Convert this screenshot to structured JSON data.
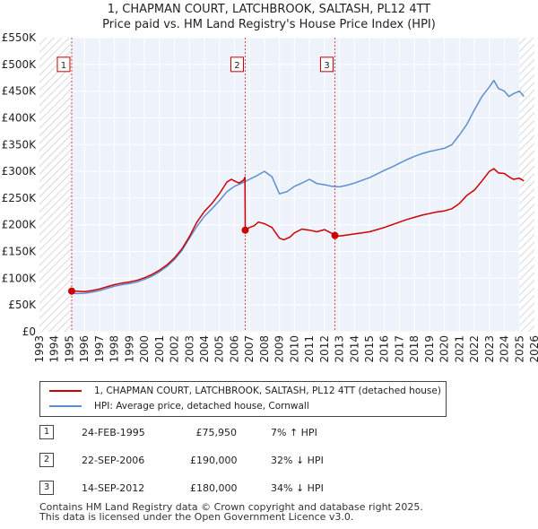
{
  "title_line1": "1, CHAPMAN COURT, LATCHBROOK, SALTASH, PL12 4TT",
  "title_line2": "Price paid vs. HM Land Registry's House Price Index (HPI)",
  "chart_data": {
    "type": "line",
    "title": "1, CHAPMAN COURT, LATCHBROOK, SALTASH, PL12 4TT — Price paid vs. HM Land Registry's House Price Index (HPI)",
    "xlim": [
      1993,
      2026
    ],
    "ylim": [
      0,
      550000
    ],
    "grid": true,
    "x_ticks": [
      1993,
      1994,
      1995,
      1996,
      1997,
      1998,
      1999,
      2000,
      2001,
      2002,
      2003,
      2004,
      2005,
      2006,
      2007,
      2008,
      2009,
      2010,
      2011,
      2012,
      2013,
      2014,
      2015,
      2016,
      2017,
      2018,
      2019,
      2020,
      2021,
      2022,
      2023,
      2024,
      2025,
      2026
    ],
    "y_ticks": [
      {
        "value": 0,
        "label": "£0"
      },
      {
        "value": 50000,
        "label": "£50K"
      },
      {
        "value": 100000,
        "label": "£100K"
      },
      {
        "value": 150000,
        "label": "£150K"
      },
      {
        "value": 200000,
        "label": "£200K"
      },
      {
        "value": 250000,
        "label": "£250K"
      },
      {
        "value": 300000,
        "label": "£300K"
      },
      {
        "value": 350000,
        "label": "£350K"
      },
      {
        "value": 400000,
        "label": "£400K"
      },
      {
        "value": 450000,
        "label": "£450K"
      },
      {
        "value": 500000,
        "label": "£500K"
      },
      {
        "value": 550000,
        "label": "£550K"
      }
    ],
    "shade_before": 1995.15,
    "shade_after": 2025.0,
    "series": [
      {
        "name": "1, CHAPMAN COURT, LATCHBROOK, SALTASH, PL12 4TT (detached house)",
        "color": "#cc0000",
        "points": [
          [
            1995.15,
            75950
          ],
          [
            1995.5,
            75800
          ],
          [
            1996.0,
            75200
          ],
          [
            1996.5,
            77000
          ],
          [
            1997.0,
            80000
          ],
          [
            1997.5,
            84000
          ],
          [
            1998.0,
            88000
          ],
          [
            1998.5,
            91000
          ],
          [
            1999.0,
            93000
          ],
          [
            1999.5,
            96000
          ],
          [
            2000.0,
            101000
          ],
          [
            2000.5,
            107000
          ],
          [
            2001.0,
            115000
          ],
          [
            2001.5,
            125000
          ],
          [
            2002.0,
            138000
          ],
          [
            2002.5,
            155000
          ],
          [
            2003.0,
            178000
          ],
          [
            2003.5,
            205000
          ],
          [
            2004.0,
            225000
          ],
          [
            2004.5,
            240000
          ],
          [
            2005.0,
            258000
          ],
          [
            2005.5,
            280000
          ],
          [
            2005.8,
            285000
          ],
          [
            2006.0,
            282000
          ],
          [
            2006.3,
            278000
          ],
          [
            2006.6,
            283000
          ],
          [
            2006.7,
            289000
          ],
          [
            2006.72,
            190000
          ],
          [
            2007.0,
            195000
          ],
          [
            2007.3,
            198000
          ],
          [
            2007.6,
            205000
          ],
          [
            2008.0,
            202000
          ],
          [
            2008.5,
            195000
          ],
          [
            2009.0,
            175000
          ],
          [
            2009.3,
            172000
          ],
          [
            2009.7,
            177000
          ],
          [
            2010.0,
            185000
          ],
          [
            2010.5,
            192000
          ],
          [
            2011.0,
            190000
          ],
          [
            2011.5,
            187000
          ],
          [
            2012.0,
            191000
          ],
          [
            2012.5,
            184000
          ],
          [
            2012.7,
            180000
          ],
          [
            2013.0,
            179000
          ],
          [
            2013.5,
            181000
          ],
          [
            2014.0,
            183000
          ],
          [
            2014.5,
            185000
          ],
          [
            2015.0,
            187000
          ],
          [
            2015.5,
            191000
          ],
          [
            2016.0,
            195000
          ],
          [
            2016.5,
            200000
          ],
          [
            2017.0,
            205000
          ],
          [
            2017.5,
            210000
          ],
          [
            2018.0,
            214000
          ],
          [
            2018.5,
            218000
          ],
          [
            2019.0,
            221000
          ],
          [
            2019.5,
            224000
          ],
          [
            2020.0,
            226000
          ],
          [
            2020.5,
            230000
          ],
          [
            2021.0,
            240000
          ],
          [
            2021.5,
            255000
          ],
          [
            2022.0,
            265000
          ],
          [
            2022.5,
            282000
          ],
          [
            2023.0,
            300000
          ],
          [
            2023.3,
            305000
          ],
          [
            2023.6,
            297000
          ],
          [
            2024.0,
            296000
          ],
          [
            2024.3,
            290000
          ],
          [
            2024.6,
            285000
          ],
          [
            2025.0,
            287000
          ],
          [
            2025.3,
            282000
          ]
        ]
      },
      {
        "name": "HPI: Average price, detached house, Cornwall",
        "color": "#5b8fd0",
        "points": [
          [
            1995.0,
            72000
          ],
          [
            1995.5,
            71500
          ],
          [
            1996.0,
            72000
          ],
          [
            1996.5,
            74000
          ],
          [
            1997.0,
            77000
          ],
          [
            1997.5,
            81000
          ],
          [
            1998.0,
            85000
          ],
          [
            1998.5,
            88000
          ],
          [
            1999.0,
            90000
          ],
          [
            1999.5,
            93000
          ],
          [
            2000.0,
            98000
          ],
          [
            2000.5,
            104000
          ],
          [
            2001.0,
            112000
          ],
          [
            2001.5,
            122000
          ],
          [
            2002.0,
            135000
          ],
          [
            2002.5,
            152000
          ],
          [
            2003.0,
            175000
          ],
          [
            2003.5,
            197000
          ],
          [
            2004.0,
            216000
          ],
          [
            2004.5,
            230000
          ],
          [
            2005.0,
            245000
          ],
          [
            2005.5,
            262000
          ],
          [
            2006.0,
            272000
          ],
          [
            2006.5,
            278000
          ],
          [
            2007.0,
            285000
          ],
          [
            2007.5,
            292000
          ],
          [
            2008.0,
            300000
          ],
          [
            2008.5,
            290000
          ],
          [
            2009.0,
            258000
          ],
          [
            2009.5,
            262000
          ],
          [
            2010.0,
            272000
          ],
          [
            2010.5,
            278000
          ],
          [
            2011.0,
            285000
          ],
          [
            2011.5,
            277000
          ],
          [
            2012.0,
            275000
          ],
          [
            2012.5,
            272000
          ],
          [
            2013.0,
            271000
          ],
          [
            2013.5,
            274000
          ],
          [
            2014.0,
            278000
          ],
          [
            2014.5,
            283000
          ],
          [
            2015.0,
            288000
          ],
          [
            2015.5,
            295000
          ],
          [
            2016.0,
            302000
          ],
          [
            2016.5,
            308000
          ],
          [
            2017.0,
            315000
          ],
          [
            2017.5,
            322000
          ],
          [
            2018.0,
            328000
          ],
          [
            2018.5,
            333000
          ],
          [
            2019.0,
            337000
          ],
          [
            2019.5,
            340000
          ],
          [
            2020.0,
            343000
          ],
          [
            2020.5,
            350000
          ],
          [
            2021.0,
            368000
          ],
          [
            2021.5,
            388000
          ],
          [
            2022.0,
            415000
          ],
          [
            2022.5,
            440000
          ],
          [
            2023.0,
            458000
          ],
          [
            2023.3,
            470000
          ],
          [
            2023.6,
            455000
          ],
          [
            2024.0,
            450000
          ],
          [
            2024.3,
            440000
          ],
          [
            2024.6,
            445000
          ],
          [
            2025.0,
            450000
          ],
          [
            2025.3,
            440000
          ]
        ]
      }
    ],
    "sales": [
      {
        "num": "1",
        "x": 1995.15,
        "y": 75950
      },
      {
        "num": "2",
        "x": 2006.72,
        "y": 190000
      },
      {
        "num": "3",
        "x": 2012.7,
        "y": 180000
      }
    ],
    "marker_box_value": 500000
  },
  "legend": {
    "property_label": "1, CHAPMAN COURT, LATCHBROOK, SALTASH, PL12 4TT (detached house)",
    "hpi_label": "HPI: Average price, detached house, Cornwall"
  },
  "sales_table": [
    {
      "num": "1",
      "date": "24-FEB-1995",
      "price": "£75,950",
      "hpi": "7% ↑ HPI"
    },
    {
      "num": "2",
      "date": "22-SEP-2006",
      "price": "£190,000",
      "hpi": "32% ↓ HPI"
    },
    {
      "num": "3",
      "date": "14-SEP-2012",
      "price": "£180,000",
      "hpi": "34% ↓ HPI"
    }
  ],
  "footer_line1": "Contains HM Land Registry data © Crown copyright and database right 2025.",
  "footer_line2": "This data is licensed under the Open Government Licence v3.0."
}
